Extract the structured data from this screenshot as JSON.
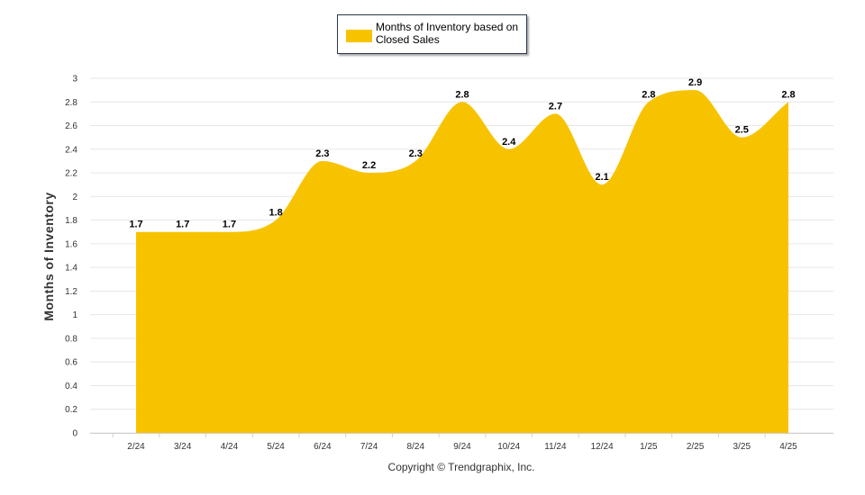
{
  "chart_data": {
    "type": "area",
    "categories": [
      "2/24",
      "3/24",
      "4/24",
      "5/24",
      "6/24",
      "7/24",
      "8/24",
      "9/24",
      "10/24",
      "11/24",
      "12/24",
      "1/25",
      "2/25",
      "3/25",
      "4/25"
    ],
    "series": [
      {
        "name": "Months of Inventory based on Closed Sales",
        "values": [
          1.7,
          1.7,
          1.7,
          1.8,
          2.3,
          2.2,
          2.3,
          2.8,
          2.4,
          2.7,
          2.1,
          2.8,
          2.9,
          2.5,
          2.8
        ]
      }
    ],
    "ylabel": "Months of Inventory",
    "xlabel": "",
    "ylim": [
      0,
      3
    ],
    "yticks": [
      "0",
      "0.2",
      "0.4",
      "0.6",
      "0.8",
      "1",
      "1.2",
      "1.4",
      "1.6",
      "1.8",
      "2",
      "2.2",
      "2.4",
      "2.6",
      "2.8",
      "3"
    ],
    "grid": true,
    "legend_position": "top-center",
    "color": "#F7C300"
  },
  "footer": {
    "copyright": "Copyright © Trendgraphix, Inc."
  }
}
